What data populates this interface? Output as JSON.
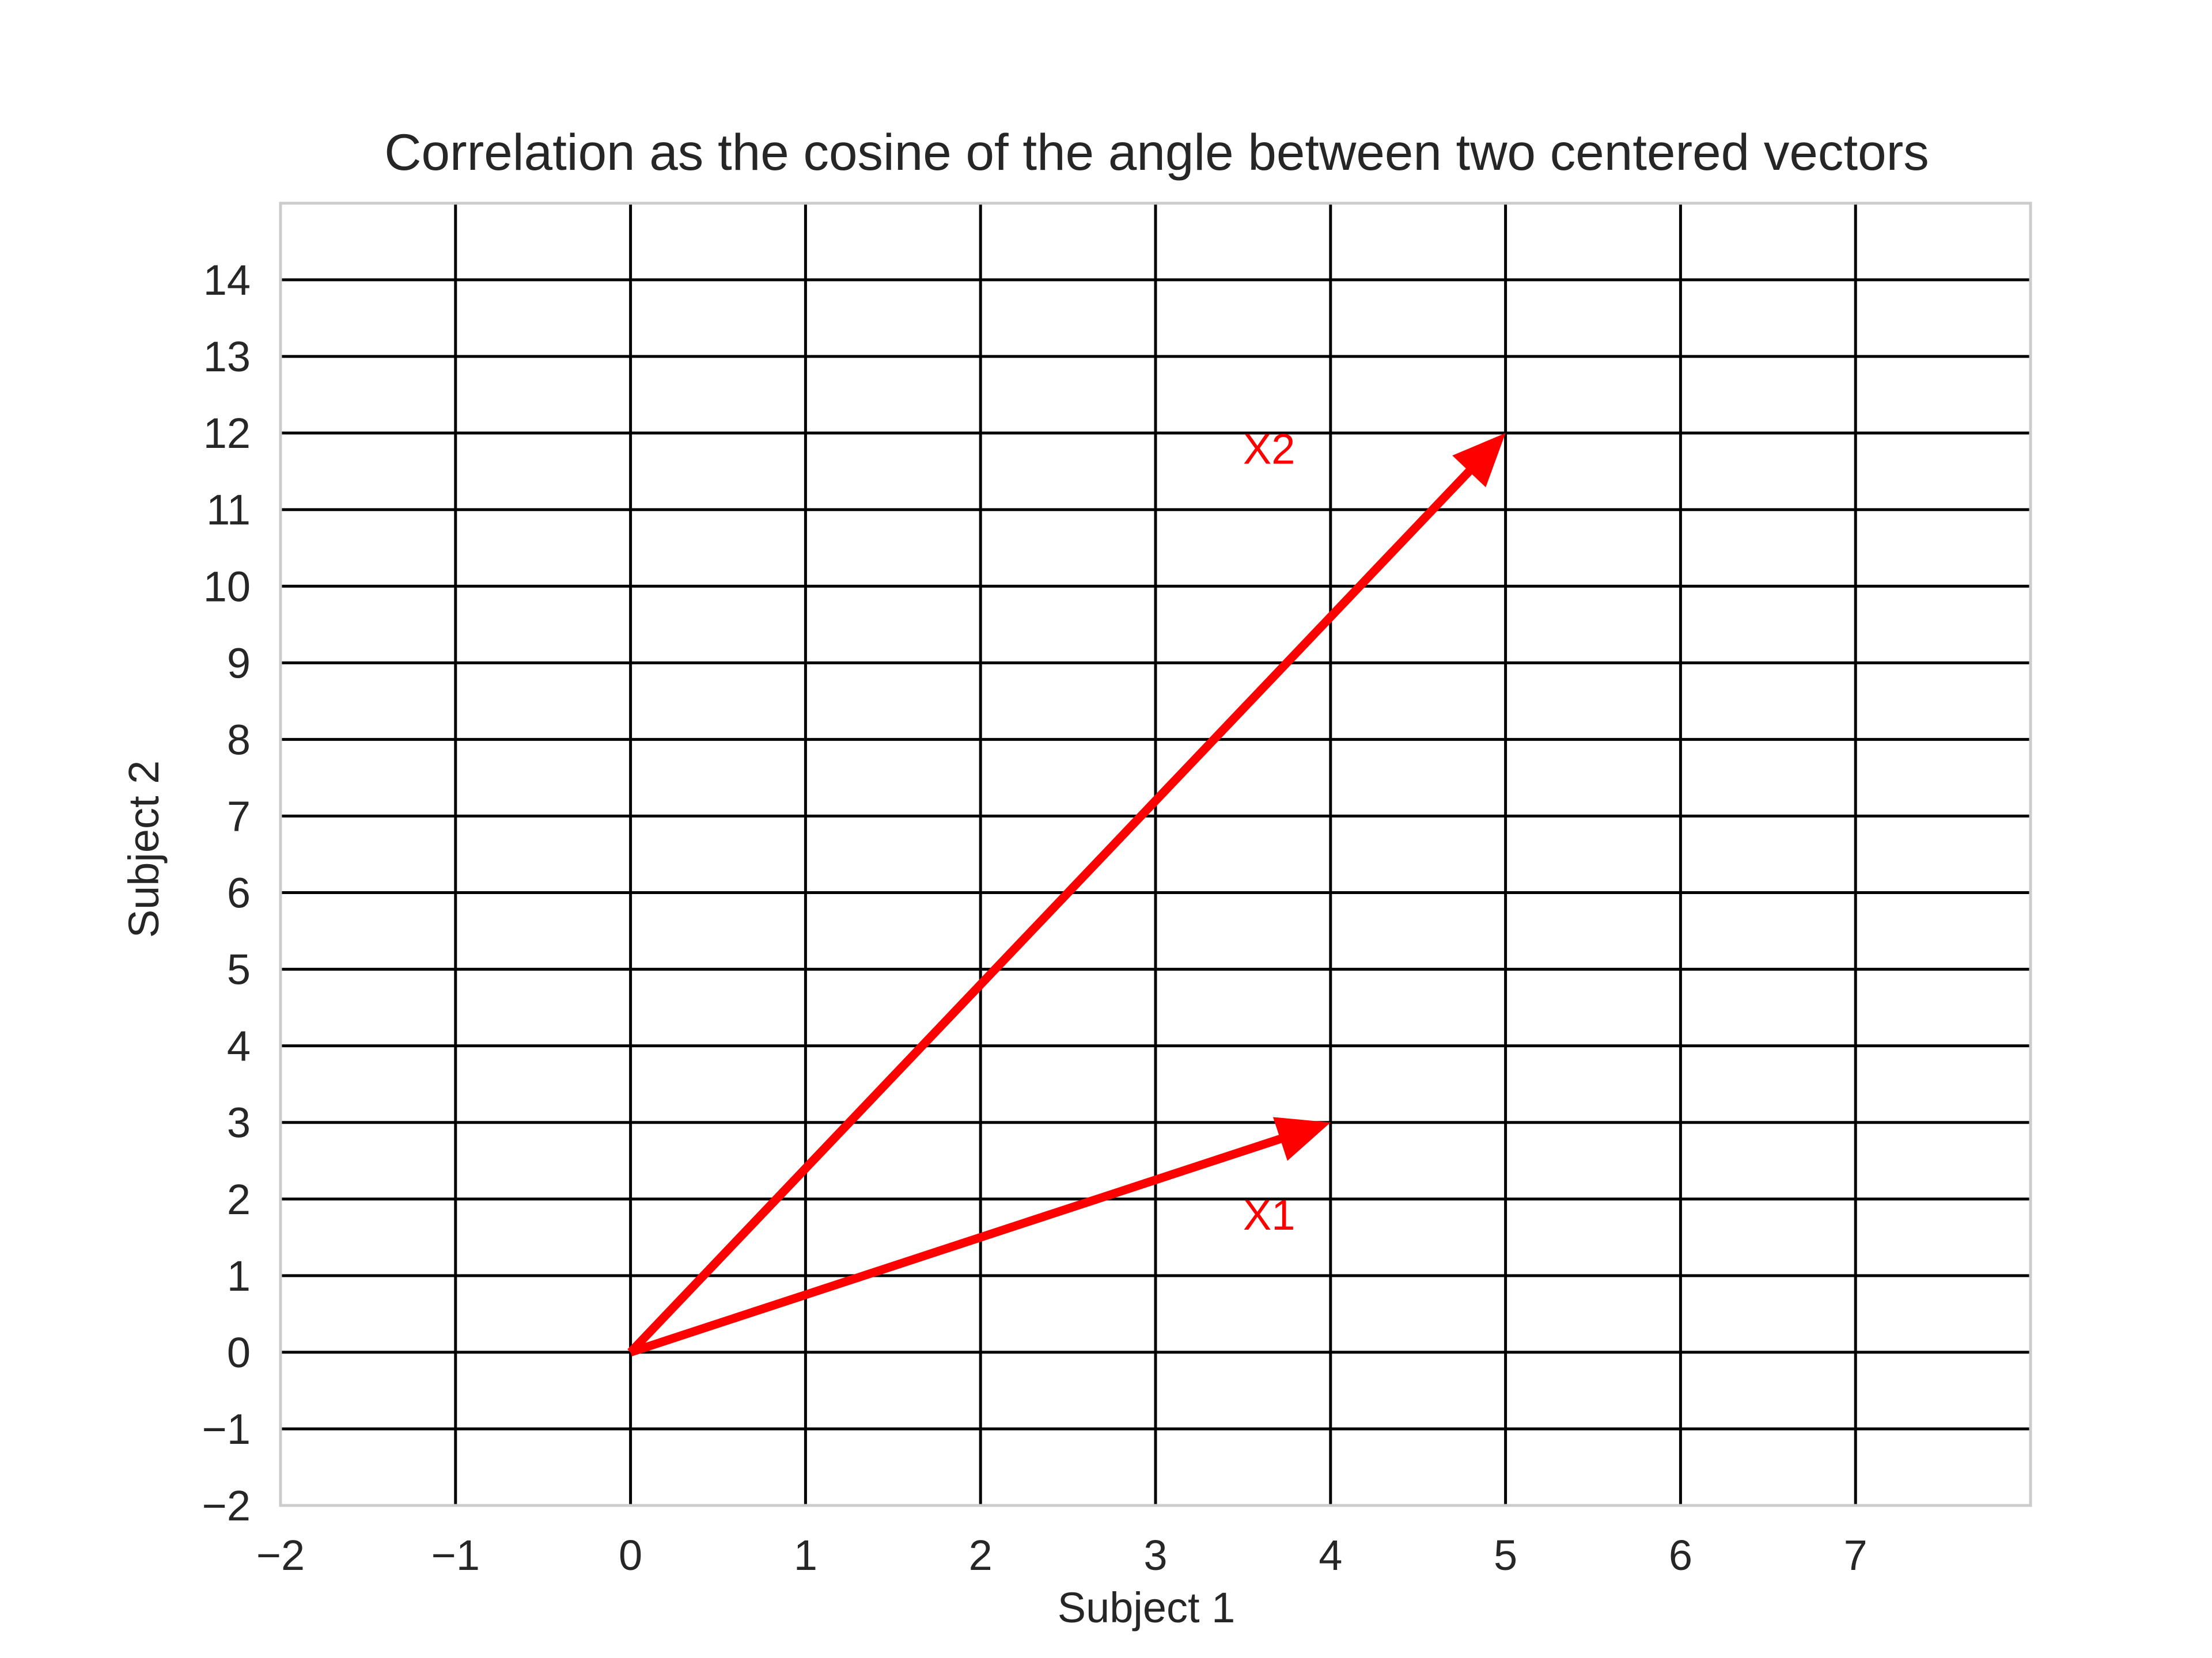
{
  "chart_data": {
    "type": "line",
    "title": "Correlation as the cosine of the angle between two centered vectors",
    "xlabel": "Subject 1",
    "ylabel": "Subject 2",
    "xlim": [
      -2,
      8
    ],
    "ylim": [
      -2,
      15
    ],
    "x_ticks": [
      -2,
      -1,
      0,
      1,
      2,
      3,
      4,
      5,
      6,
      7
    ],
    "y_ticks": [
      -2,
      -1,
      0,
      1,
      2,
      3,
      4,
      5,
      6,
      7,
      8,
      9,
      10,
      11,
      12,
      13,
      14
    ],
    "x_tick_labels": [
      "−2",
      "−1",
      "0",
      "1",
      "2",
      "3",
      "4",
      "5",
      "6",
      "7"
    ],
    "y_tick_labels": [
      "−2",
      "−1",
      "0",
      "1",
      "2",
      "3",
      "4",
      "5",
      "6",
      "7",
      "8",
      "9",
      "10",
      "11",
      "12",
      "13",
      "14"
    ],
    "grid": true,
    "vectors": [
      {
        "label": "X1",
        "from": [
          0,
          0
        ],
        "to": [
          4,
          3
        ],
        "label_at": [
          3.5,
          1.6
        ],
        "color": "#ff0000"
      },
      {
        "label": "X2",
        "from": [
          0,
          0
        ],
        "to": [
          5,
          12
        ],
        "label_at": [
          3.5,
          11.6
        ],
        "color": "#ff0000"
      }
    ],
    "colors": {
      "grid": "#000000",
      "frame": "#cccccc",
      "text": "#262626",
      "vector": "#ff0000"
    }
  }
}
